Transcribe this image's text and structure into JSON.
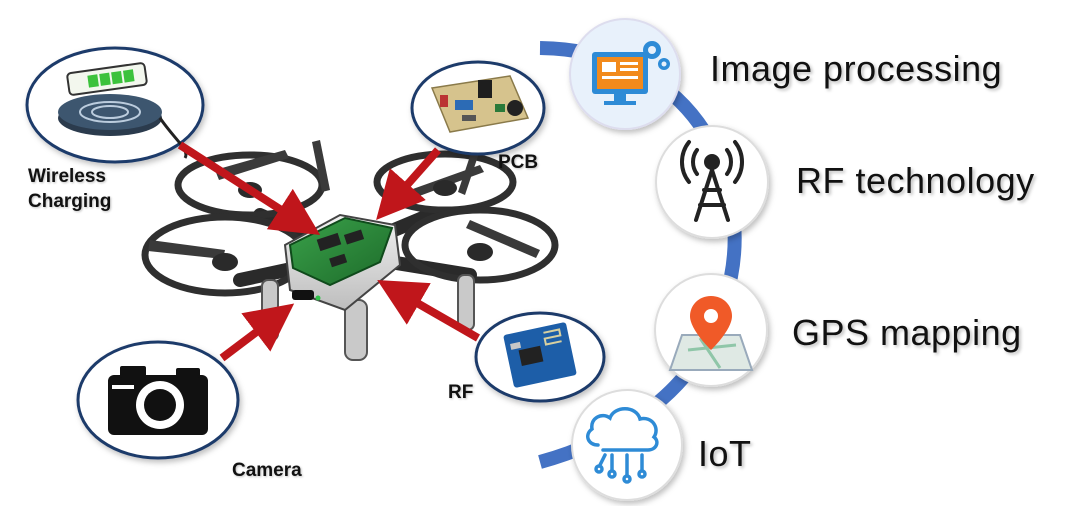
{
  "components": {
    "wireless_charging": [
      "Wireless",
      "Charging"
    ],
    "pcb": "PCB",
    "camera": "Camera",
    "rf": "RF"
  },
  "technologies": {
    "image_processing": "Image processing",
    "rf_technology": "RF technology",
    "gps_mapping": "GPS mapping",
    "iot": "IoT"
  },
  "colors": {
    "arrow": "#c0161b",
    "arc": "#4472c4",
    "circle_border": "#1f3a6b",
    "icon_dark": "#222222",
    "icon_blue": "#2e8bd6",
    "icon_orange": "#f28a1c",
    "pin_orange": "#f05a28"
  }
}
